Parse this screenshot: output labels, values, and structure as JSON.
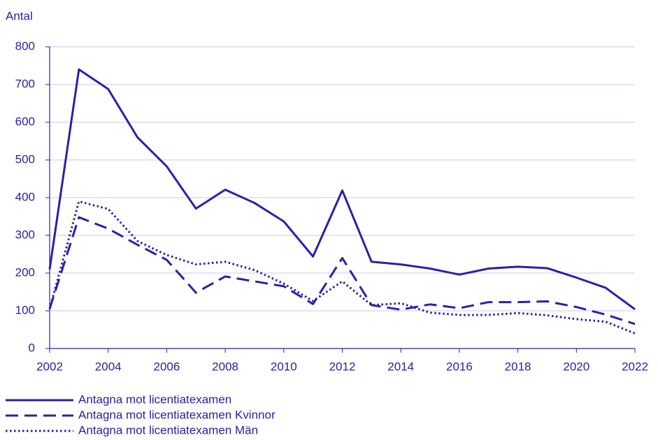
{
  "chart_data": {
    "type": "line",
    "y_label": "Antal",
    "x": [
      2002,
      2003,
      2004,
      2005,
      2006,
      2007,
      2008,
      2009,
      2010,
      2011,
      2012,
      2013,
      2014,
      2015,
      2016,
      2017,
      2018,
      2019,
      2020,
      2021,
      2022
    ],
    "series": [
      {
        "name": "Antagna mot licentiatexamen",
        "color": "#2b20a8",
        "line_style": "solid",
        "values": [
          210,
          740,
          688,
          560,
          483,
          371,
          421,
          386,
          337,
          244,
          419,
          230,
          223,
          212,
          196,
          212,
          217,
          213,
          188,
          161,
          104
        ]
      },
      {
        "name": "Antagna mot licentiatexamen Kvinnor",
        "color": "#2b20a8",
        "line_style": "dashed",
        "values": [
          105,
          348,
          318,
          275,
          235,
          148,
          191,
          178,
          165,
          118,
          240,
          115,
          103,
          117,
          107,
          123,
          123,
          125,
          110,
          90,
          65
        ]
      },
      {
        "name": "Antagna mot licentiatexamen Män",
        "color": "#2b20a8",
        "line_style": "dotted",
        "values": [
          105,
          390,
          370,
          285,
          248,
          223,
          230,
          208,
          172,
          126,
          178,
          115,
          120,
          95,
          89,
          89,
          94,
          88,
          78,
          71,
          40
        ]
      }
    ],
    "xlim": [
      2002,
      2022
    ],
    "xticks": [
      2002,
      2004,
      2006,
      2008,
      2010,
      2012,
      2014,
      2016,
      2018,
      2020,
      2022
    ],
    "ylim": [
      0,
      800
    ],
    "yticks": [
      0,
      100,
      200,
      300,
      400,
      500,
      600,
      700,
      800
    ],
    "grid": true,
    "legend": "bottom"
  }
}
